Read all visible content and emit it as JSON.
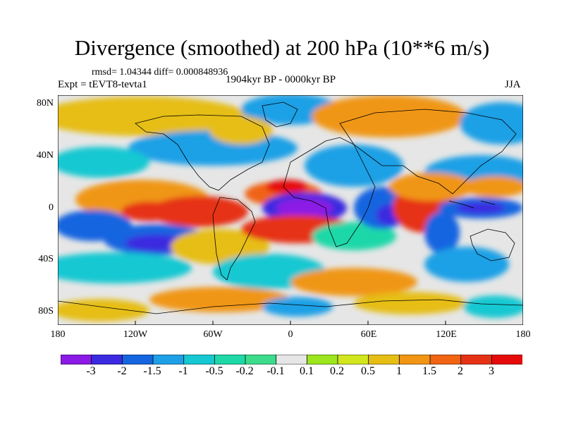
{
  "figure": {
    "title": "Divergence (smoothed) at 200 hPa (10**6 m/s)",
    "stats": "rmsd= 1.04344 diff= 0.000848936",
    "experiment": "Expt = tEVT8-tevta1",
    "period": "1904kyr BP - 0000kyr BP",
    "season": "JJA"
  },
  "axes": {
    "lat_ticks": [
      "80N",
      "40N",
      "0",
      "40S",
      "80S"
    ],
    "lon_ticks": [
      "180",
      "120W",
      "60W",
      "0",
      "60E",
      "120E",
      "180"
    ]
  },
  "colorbar": {
    "labels": [
      "-3",
      "-2",
      "-1.5",
      "-1",
      "-0.5",
      "-0.2",
      "-0.1",
      "0.1",
      "0.2",
      "0.5",
      "1",
      "1.5",
      "2",
      "3"
    ],
    "colors": [
      "#8b1ae6",
      "#3b2ae0",
      "#1565e0",
      "#1ea0e6",
      "#16c8d2",
      "#1ed8a8",
      "#3cdc8c",
      "#e6e6e6",
      "#9be61e",
      "#d2e61e",
      "#e6be14",
      "#f09614",
      "#f06414",
      "#e63214",
      "#e60a0a"
    ]
  },
  "map_colors": {
    "ocean_neutral": "#e6e6e6",
    "coast": "#000000"
  }
}
